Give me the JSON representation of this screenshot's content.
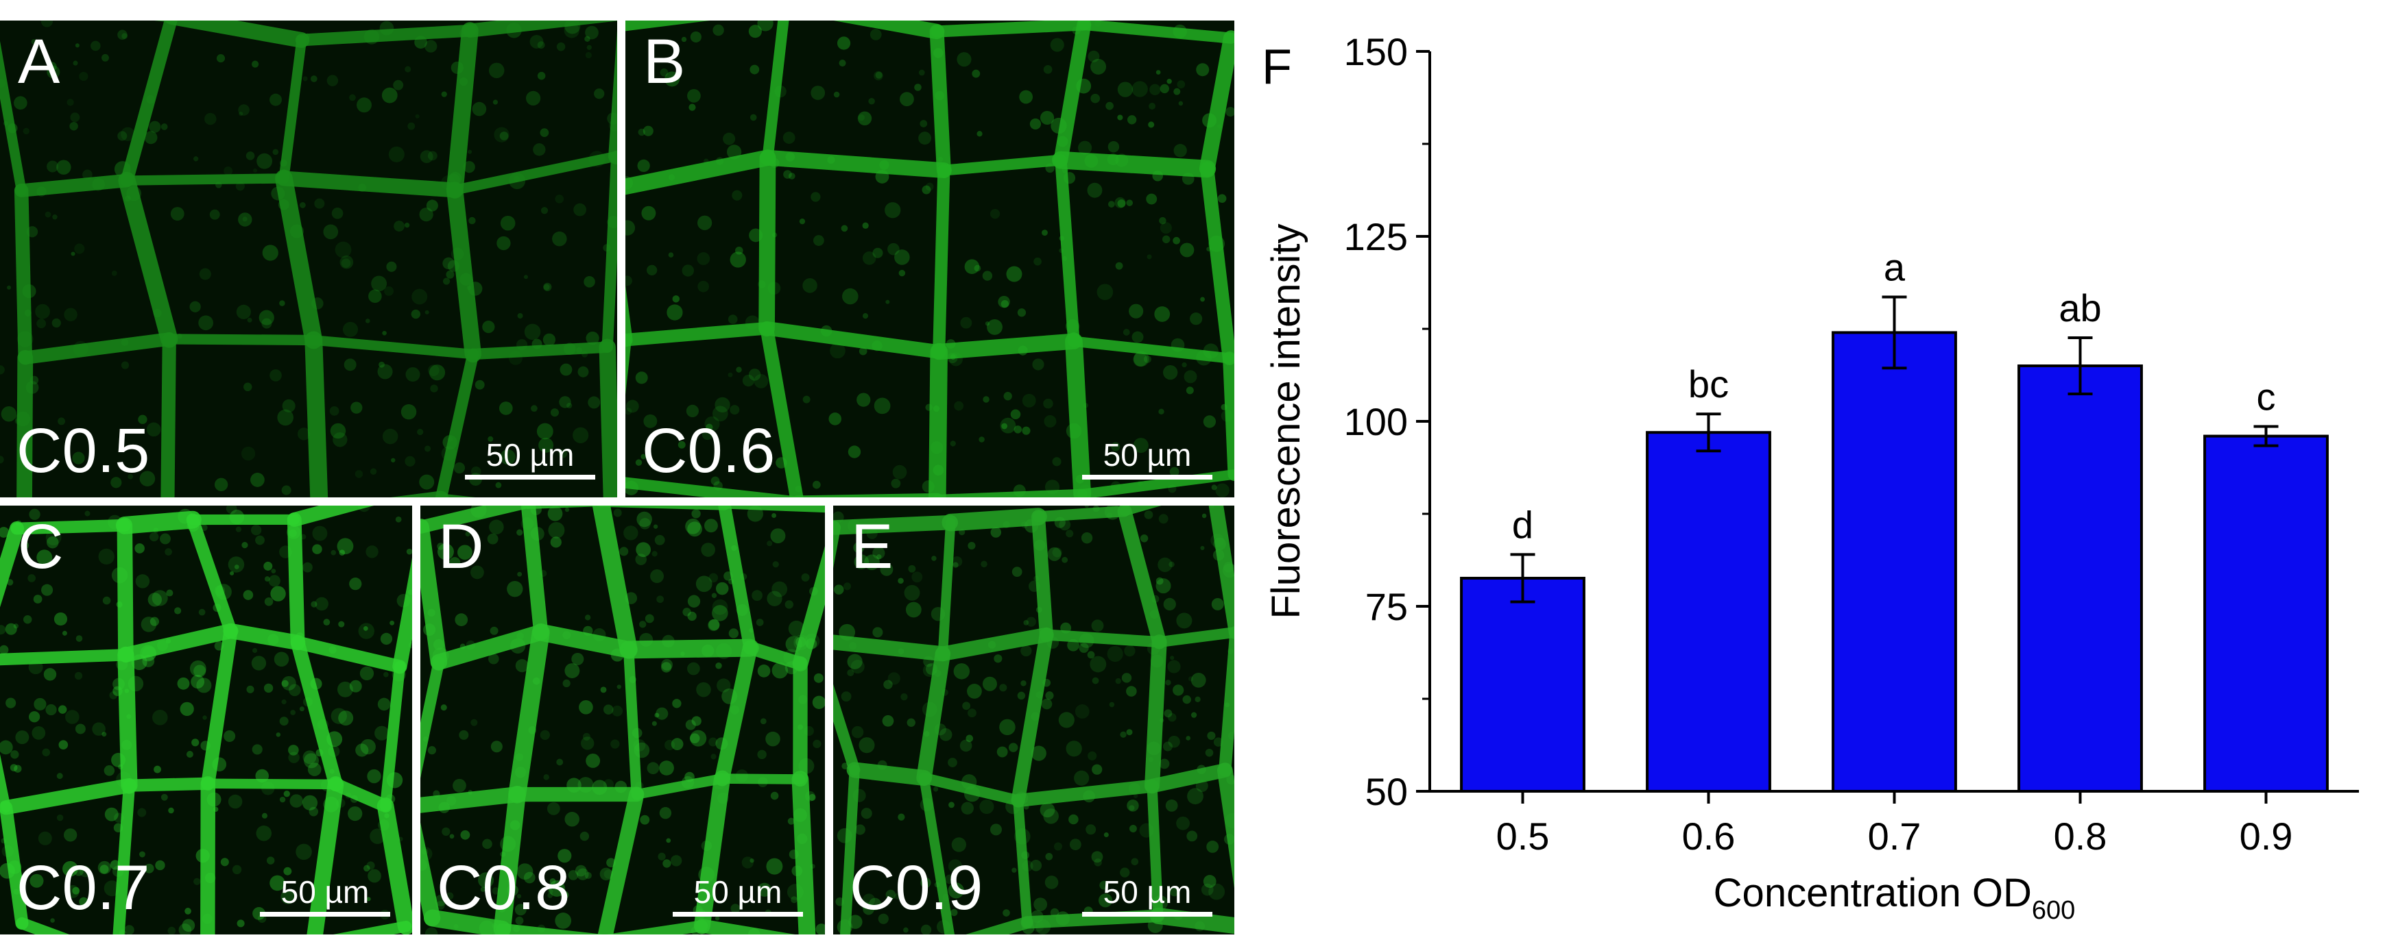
{
  "panels": [
    {
      "letter": "A",
      "label": "C0.5",
      "scale": "50 µm",
      "texture_color": "#1a8c1a"
    },
    {
      "letter": "B",
      "label": "C0.6",
      "scale": "50 µm",
      "texture_color": "#22b022"
    },
    {
      "letter": "C",
      "label": "C0.7",
      "scale": "50 µm",
      "texture_color": "#2ed22e"
    },
    {
      "letter": "D",
      "label": "C0.8",
      "scale": "50 µm",
      "texture_color": "#2cc22c"
    },
    {
      "letter": "E",
      "label": "C0.9",
      "scale": "50 µm",
      "texture_color": "#26a826"
    }
  ],
  "chart_data": {
    "type": "bar",
    "panel_letter": "F",
    "categories": [
      "0.5",
      "0.6",
      "0.7",
      "0.8",
      "0.9"
    ],
    "values": [
      78.8,
      98.5,
      112,
      107.5,
      98
    ],
    "errors": [
      3.2,
      2.5,
      4.8,
      3.8,
      1.3
    ],
    "significance": [
      "d",
      "bc",
      "a",
      "ab",
      "c"
    ],
    "ylabel": "Fluorescence intensity",
    "xlabel_main": "Concentration OD",
    "xlabel_sub": "600",
    "ylim": [
      50,
      150
    ],
    "yticks": [
      50,
      75,
      100,
      125,
      150
    ],
    "bar_color": "#0a0af0",
    "grid": false
  }
}
